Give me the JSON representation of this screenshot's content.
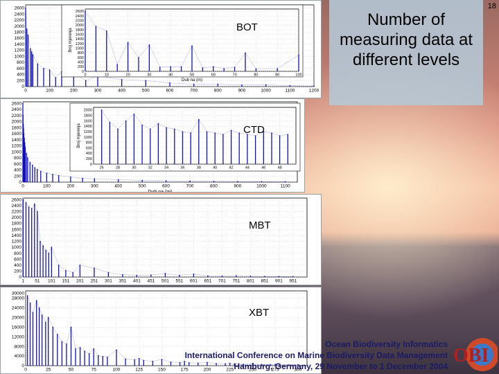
{
  "slide": {
    "page_number": "18",
    "title": "Number of measuring data at different levels",
    "footer_org": "Ocean Biodiversity Informatics",
    "footer_conf": "International Conference on Marine Biodiversity Data Management",
    "footer_place": "Hamburg, Germany, 29 November to 1 December 2004",
    "logo_text": "OBI"
  },
  "chart_data": [
    {
      "name": "BOT",
      "type": "bar",
      "title": "BOT",
      "xlabel": "",
      "x_ticks": [
        "0",
        "100",
        "200",
        "300",
        "400",
        "500",
        "600",
        "700",
        "800",
        "900",
        "1000",
        "1100",
        "1200"
      ],
      "y_ticks": [
        "2600",
        "2400",
        "2200",
        "2000",
        "1800",
        "1600",
        "1400",
        "1200",
        "1000",
        "800",
        "600",
        "400",
        "200",
        "0"
      ],
      "xlim": [
        0,
        1200
      ],
      "ylim": [
        0,
        2700
      ],
      "color": "#1010c0",
      "values": [
        [
          0,
          2600
        ],
        [
          5,
          1900
        ],
        [
          10,
          1700
        ],
        [
          20,
          1250
        ],
        [
          25,
          1150
        ],
        [
          30,
          1050
        ],
        [
          50,
          750
        ],
        [
          75,
          600
        ],
        [
          100,
          550
        ],
        [
          125,
          300
        ],
        [
          150,
          500
        ],
        [
          200,
          450
        ],
        [
          250,
          200
        ],
        [
          300,
          350
        ],
        [
          400,
          230
        ],
        [
          500,
          200
        ],
        [
          600,
          120
        ],
        [
          700,
          80
        ],
        [
          800,
          80
        ],
        [
          900,
          50
        ],
        [
          1000,
          60
        ],
        [
          1100,
          30
        ],
        [
          1200,
          20
        ]
      ],
      "inset": {
        "xlabel": "Dub na (m)",
        "ylabel": "Broj mjerenja",
        "x_ticks": [
          "0",
          "10",
          "20",
          "30",
          "40",
          "50",
          "60",
          "70",
          "80",
          "90",
          "100"
        ],
        "y_ticks": [
          "2600",
          "2400",
          "2200",
          "2000",
          "1800",
          "1600",
          "1400",
          "1200",
          "1000",
          "800",
          "600",
          "400",
          "200",
          "0"
        ],
        "xlim": [
          0,
          100
        ],
        "ylim": [
          0,
          2700
        ],
        "values": [
          [
            0,
            2600
          ],
          [
            5,
            1950
          ],
          [
            10,
            1750
          ],
          [
            15,
            300
          ],
          [
            20,
            1250
          ],
          [
            25,
            600
          ],
          [
            30,
            1150
          ],
          [
            35,
            180
          ],
          [
            40,
            200
          ],
          [
            45,
            200
          ],
          [
            50,
            1100
          ],
          [
            55,
            150
          ],
          [
            60,
            200
          ],
          [
            65,
            120
          ],
          [
            70,
            180
          ],
          [
            75,
            800
          ],
          [
            80,
            110
          ],
          [
            90,
            120
          ],
          [
            100,
            700
          ]
        ]
      }
    },
    {
      "name": "CTD",
      "type": "bar",
      "title": "CTD",
      "xlabel": "Dub na (m)",
      "x_ticks": [
        "0",
        "100",
        "200",
        "300",
        "400",
        "500",
        "600",
        "700",
        "800",
        "900",
        "1000",
        "1100"
      ],
      "y_ticks": [
        "2600",
        "2400",
        "2200",
        "2000",
        "1800",
        "1600",
        "1400",
        "1200",
        "1000",
        "800",
        "600",
        "400",
        "200",
        "0"
      ],
      "xlim": [
        0,
        1150
      ],
      "ylim": [
        0,
        2650
      ],
      "color": "#1010c0",
      "values": [
        [
          0,
          2600
        ],
        [
          1,
          2200
        ],
        [
          2,
          1900
        ],
        [
          3,
          1750
        ],
        [
          4,
          1600
        ],
        [
          6,
          1450
        ],
        [
          8,
          1300
        ],
        [
          10,
          1150
        ],
        [
          15,
          950
        ],
        [
          20,
          800
        ],
        [
          30,
          650
        ],
        [
          40,
          560
        ],
        [
          50,
          480
        ],
        [
          60,
          420
        ],
        [
          75,
          360
        ],
        [
          100,
          300
        ],
        [
          125,
          260
        ],
        [
          150,
          220
        ],
        [
          200,
          170
        ],
        [
          250,
          130
        ],
        [
          300,
          110
        ],
        [
          400,
          80
        ],
        [
          500,
          60
        ],
        [
          600,
          45
        ],
        [
          700,
          35
        ],
        [
          800,
          28
        ],
        [
          900,
          22
        ],
        [
          1000,
          18
        ],
        [
          1100,
          12
        ]
      ],
      "inset": {
        "xlabel": "",
        "ylabel": "Broj mjerenja",
        "x_ticks": [
          "26",
          "28",
          "30",
          "32",
          "34",
          "36",
          "38",
          "40",
          "42",
          "44",
          "46",
          "48"
        ],
        "y_ticks": [
          "2000",
          "1800",
          "1600",
          "1400",
          "1200",
          "1000",
          "800",
          "600",
          "400",
          "200",
          "0"
        ],
        "xlim": [
          25,
          50
        ],
        "ylim": [
          0,
          2100
        ],
        "values": [
          [
            26,
            2000
          ],
          [
            27,
            1550
          ],
          [
            28,
            1300
          ],
          [
            29,
            1600
          ],
          [
            30,
            1850
          ],
          [
            31,
            1450
          ],
          [
            32,
            1300
          ],
          [
            33,
            1500
          ],
          [
            34,
            1350
          ],
          [
            35,
            1300
          ],
          [
            36,
            1200
          ],
          [
            37,
            1150
          ],
          [
            38,
            1650
          ],
          [
            39,
            1200
          ],
          [
            40,
            1150
          ],
          [
            41,
            1100
          ],
          [
            42,
            1250
          ],
          [
            43,
            1150
          ],
          [
            44,
            1100
          ],
          [
            45,
            1050
          ],
          [
            46,
            1200
          ],
          [
            47,
            1150
          ],
          [
            48,
            1050
          ],
          [
            49,
            1100
          ]
        ]
      }
    },
    {
      "name": "MBT",
      "type": "bar",
      "title": "MBT",
      "xlabel": "",
      "x_ticks": [
        "1",
        "51",
        "101",
        "151",
        "201",
        "251",
        "301",
        "351",
        "401",
        "451",
        "501",
        "551",
        "601",
        "651",
        "701",
        "751",
        "801",
        "851",
        "901",
        "951"
      ],
      "y_ticks": [
        "2600",
        "2400",
        "2200",
        "2000",
        "1800",
        "1600",
        "1400",
        "1200",
        "1000",
        "800",
        "600",
        "400",
        "200",
        "0"
      ],
      "xlim": [
        0,
        1000
      ],
      "ylim": [
        0,
        2650
      ],
      "color": "#1010c0",
      "values": [
        [
          1,
          2600
        ],
        [
          11,
          2500
        ],
        [
          21,
          2350
        ],
        [
          31,
          2300
        ],
        [
          41,
          2450
        ],
        [
          51,
          2200
        ],
        [
          61,
          1200
        ],
        [
          71,
          1050
        ],
        [
          81,
          900
        ],
        [
          91,
          800
        ],
        [
          101,
          1000
        ],
        [
          126,
          400
        ],
        [
          151,
          220
        ],
        [
          176,
          150
        ],
        [
          201,
          400
        ],
        [
          251,
          300
        ],
        [
          301,
          150
        ],
        [
          351,
          80
        ],
        [
          401,
          60
        ],
        [
          451,
          70
        ],
        [
          501,
          120
        ],
        [
          551,
          60
        ],
        [
          601,
          100
        ],
        [
          651,
          40
        ],
        [
          701,
          30
        ],
        [
          751,
          45
        ],
        [
          801,
          25
        ],
        [
          851,
          20
        ],
        [
          901,
          20
        ],
        [
          951,
          15
        ]
      ]
    },
    {
      "name": "XBT",
      "type": "bar",
      "title": "XBT",
      "xlabel": "",
      "x_ticks": [
        "0",
        "25",
        "50",
        "75",
        "100",
        "125",
        "150",
        "175",
        "200",
        "225",
        "250",
        "275",
        "300"
      ],
      "y_ticks": [
        "30000",
        "28000",
        "24000",
        "20000",
        "16000",
        "12000",
        "8000",
        "4000",
        "0"
      ],
      "xlim": [
        0,
        310
      ],
      "ylim": [
        0,
        31000
      ],
      "color": "#1010c0",
      "values": [
        [
          2,
          29000
        ],
        [
          5,
          26000
        ],
        [
          8,
          22000
        ],
        [
          12,
          27000
        ],
        [
          15,
          24000
        ],
        [
          18,
          21000
        ],
        [
          22,
          18000
        ],
        [
          25,
          20000
        ],
        [
          30,
          16000
        ],
        [
          35,
          13000
        ],
        [
          40,
          10000
        ],
        [
          45,
          9000
        ],
        [
          50,
          16000
        ],
        [
          55,
          7000
        ],
        [
          60,
          7500
        ],
        [
          65,
          6000
        ],
        [
          70,
          5000
        ],
        [
          75,
          7000
        ],
        [
          80,
          4200
        ],
        [
          85,
          3800
        ],
        [
          90,
          3500
        ],
        [
          100,
          6500
        ],
        [
          110,
          2800
        ],
        [
          120,
          2500
        ],
        [
          125,
          3000
        ],
        [
          130,
          2200
        ],
        [
          140,
          1800
        ],
        [
          150,
          2600
        ],
        [
          160,
          1500
        ],
        [
          170,
          1300
        ],
        [
          175,
          1800
        ],
        [
          180,
          1200
        ],
        [
          190,
          1100
        ],
        [
          200,
          1400
        ],
        [
          210,
          900
        ],
        [
          220,
          800
        ],
        [
          225,
          1000
        ],
        [
          230,
          700
        ],
        [
          240,
          600
        ],
        [
          250,
          800
        ],
        [
          260,
          500
        ],
        [
          270,
          450
        ],
        [
          275,
          550
        ],
        [
          280,
          400
        ],
        [
          290,
          350
        ],
        [
          300,
          400
        ]
      ]
    }
  ]
}
